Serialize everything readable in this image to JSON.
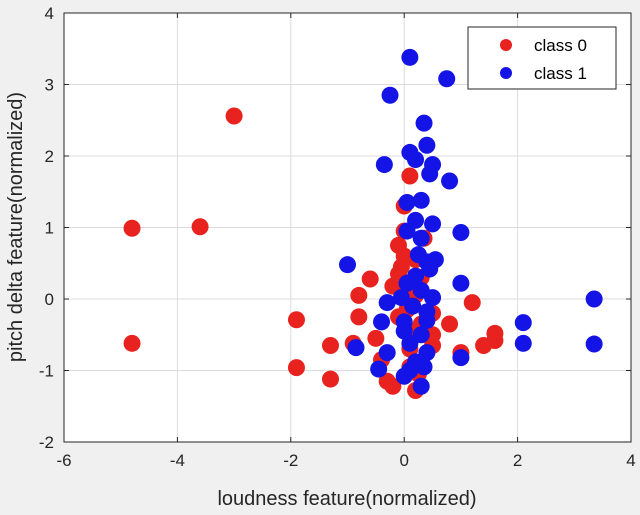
{
  "chart_data": {
    "type": "scatter",
    "xlabel": "loudness feature(normalized)",
    "ylabel": "pitch delta feature(normalized)",
    "xlim": [
      -6,
      4
    ],
    "ylim": [
      -2,
      4
    ],
    "xticks": [
      "-6",
      "-4",
      "-2",
      "0",
      "2",
      "4"
    ],
    "yticks": [
      "-2",
      "-1",
      "0",
      "1",
      "2",
      "3",
      "4"
    ],
    "grid": true,
    "legend_position": "top-right",
    "series": [
      {
        "name": "class 0",
        "color": "#e8221f",
        "points": [
          [
            -3.0,
            2.56
          ],
          [
            -4.8,
            0.99
          ],
          [
            -3.6,
            1.01
          ],
          [
            -4.8,
            -0.62
          ],
          [
            -1.9,
            -0.29
          ],
          [
            -1.9,
            -0.96
          ],
          [
            -1.3,
            -0.65
          ],
          [
            -1.3,
            -1.12
          ],
          [
            -0.9,
            -0.62
          ],
          [
            -0.8,
            -0.25
          ],
          [
            -0.8,
            0.05
          ],
          [
            -0.6,
            0.28
          ],
          [
            -0.5,
            -0.55
          ],
          [
            -0.4,
            -0.85
          ],
          [
            -0.3,
            -1.15
          ],
          [
            -0.2,
            -1.22
          ],
          [
            -0.2,
            0.18
          ],
          [
            -0.1,
            0.35
          ],
          [
            -0.1,
            0.75
          ],
          [
            0.0,
            1.3
          ],
          [
            0.0,
            0.95
          ],
          [
            0.0,
            0.6
          ],
          [
            0.05,
            0.15
          ],
          [
            -0.1,
            -0.25
          ],
          [
            0.1,
            -0.45
          ],
          [
            0.1,
            -0.7
          ],
          [
            0.1,
            -0.95
          ],
          [
            0.2,
            0.05
          ],
          [
            0.2,
            0.55
          ],
          [
            0.2,
            -1.28
          ],
          [
            0.25,
            -1.05
          ],
          [
            0.3,
            -0.35
          ],
          [
            0.3,
            0.3
          ],
          [
            0.1,
            1.72
          ],
          [
            0.5,
            -0.65
          ],
          [
            0.5,
            -0.2
          ],
          [
            0.5,
            -0.5
          ],
          [
            0.8,
            -0.35
          ],
          [
            1.0,
            -0.75
          ],
          [
            1.2,
            -0.05
          ],
          [
            1.4,
            -0.65
          ],
          [
            1.6,
            -0.48
          ],
          [
            1.6,
            -0.58
          ],
          [
            0.05,
            -0.15
          ],
          [
            -0.05,
            0.45
          ],
          [
            0.35,
            0.85
          ]
        ]
      },
      {
        "name": "class 1",
        "color": "#1414e6",
        "points": [
          [
            0.1,
            3.38
          ],
          [
            0.75,
            3.08
          ],
          [
            -0.25,
            2.85
          ],
          [
            0.35,
            2.46
          ],
          [
            0.4,
            2.15
          ],
          [
            0.1,
            2.05
          ],
          [
            0.5,
            1.88
          ],
          [
            0.2,
            1.95
          ],
          [
            -0.35,
            1.88
          ],
          [
            0.45,
            1.75
          ],
          [
            0.8,
            1.65
          ],
          [
            0.3,
            1.38
          ],
          [
            0.05,
            1.35
          ],
          [
            0.2,
            1.1
          ],
          [
            0.5,
            1.05
          ],
          [
            1.0,
            0.93
          ],
          [
            0.05,
            0.95
          ],
          [
            0.3,
            0.85
          ],
          [
            0.25,
            0.62
          ],
          [
            0.4,
            0.52
          ],
          [
            0.45,
            0.42
          ],
          [
            -1.0,
            0.48
          ],
          [
            0.2,
            0.32
          ],
          [
            0.05,
            0.22
          ],
          [
            0.3,
            0.12
          ],
          [
            1.0,
            0.22
          ],
          [
            -0.05,
            0.02
          ],
          [
            0.5,
            0.02
          ],
          [
            0.15,
            -0.1
          ],
          [
            -0.3,
            -0.05
          ],
          [
            0.4,
            -0.18
          ],
          [
            0.0,
            -0.32
          ],
          [
            -0.4,
            -0.32
          ],
          [
            0.4,
            -0.3
          ],
          [
            0.3,
            -0.5
          ],
          [
            0.1,
            -0.62
          ],
          [
            0.4,
            -0.75
          ],
          [
            -0.3,
            -0.75
          ],
          [
            -0.85,
            -0.68
          ],
          [
            0.2,
            -0.88
          ],
          [
            0.1,
            -1.0
          ],
          [
            -0.45,
            -0.98
          ],
          [
            0.0,
            -1.08
          ],
          [
            0.35,
            -0.95
          ],
          [
            0.3,
            -1.22
          ],
          [
            1.0,
            -0.82
          ],
          [
            2.1,
            -0.33
          ],
          [
            2.1,
            -0.62
          ],
          [
            3.35,
            0.0
          ],
          [
            3.35,
            -0.63
          ],
          [
            0.0,
            -0.45
          ],
          [
            0.55,
            0.55
          ]
        ]
      }
    ]
  }
}
